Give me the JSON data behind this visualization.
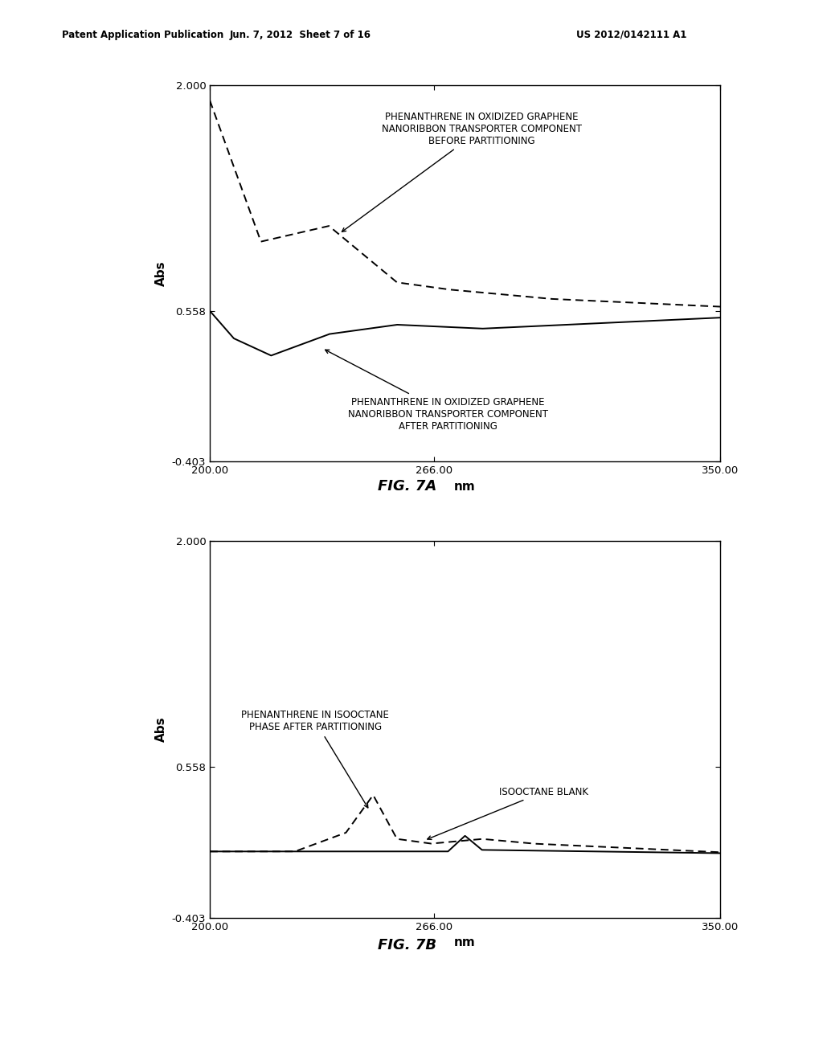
{
  "header_left": "Patent Application Publication",
  "header_mid": "Jun. 7, 2012  Sheet 7 of 16",
  "header_right": "US 2012/0142111 A1",
  "fig7a_title": "FIG. 7A",
  "fig7b_title": "FIG. 7B",
  "xlabel": "nm",
  "ylabel": "Abs",
  "xlim": [
    200.0,
    350.0
  ],
  "ylim": [
    -0.403,
    2.0
  ],
  "yticks": [
    -0.403,
    0.558,
    2.0
  ],
  "xticks": [
    200.0,
    266.0,
    350.0
  ],
  "annotation_7a_before": "PHENANTHRENE IN OXIDIZED GRAPHENE\nNANORIBBON TRANSPORTER COMPONENT\nBEFORE PARTITIONING",
  "annotation_7a_after": "PHENANTHRENE IN OXIDIZED GRAPHENE\nNANORIBBON TRANSPORTER COMPONENT\nAFTER PARTITIONING",
  "annotation_7b_iso": "PHENANTHRENE IN ISOOCTANE\nPHASE AFTER PARTITIONING",
  "annotation_7b_blank": "ISOOCTANE BLANK",
  "background_color": "#ffffff",
  "line_color": "#000000"
}
